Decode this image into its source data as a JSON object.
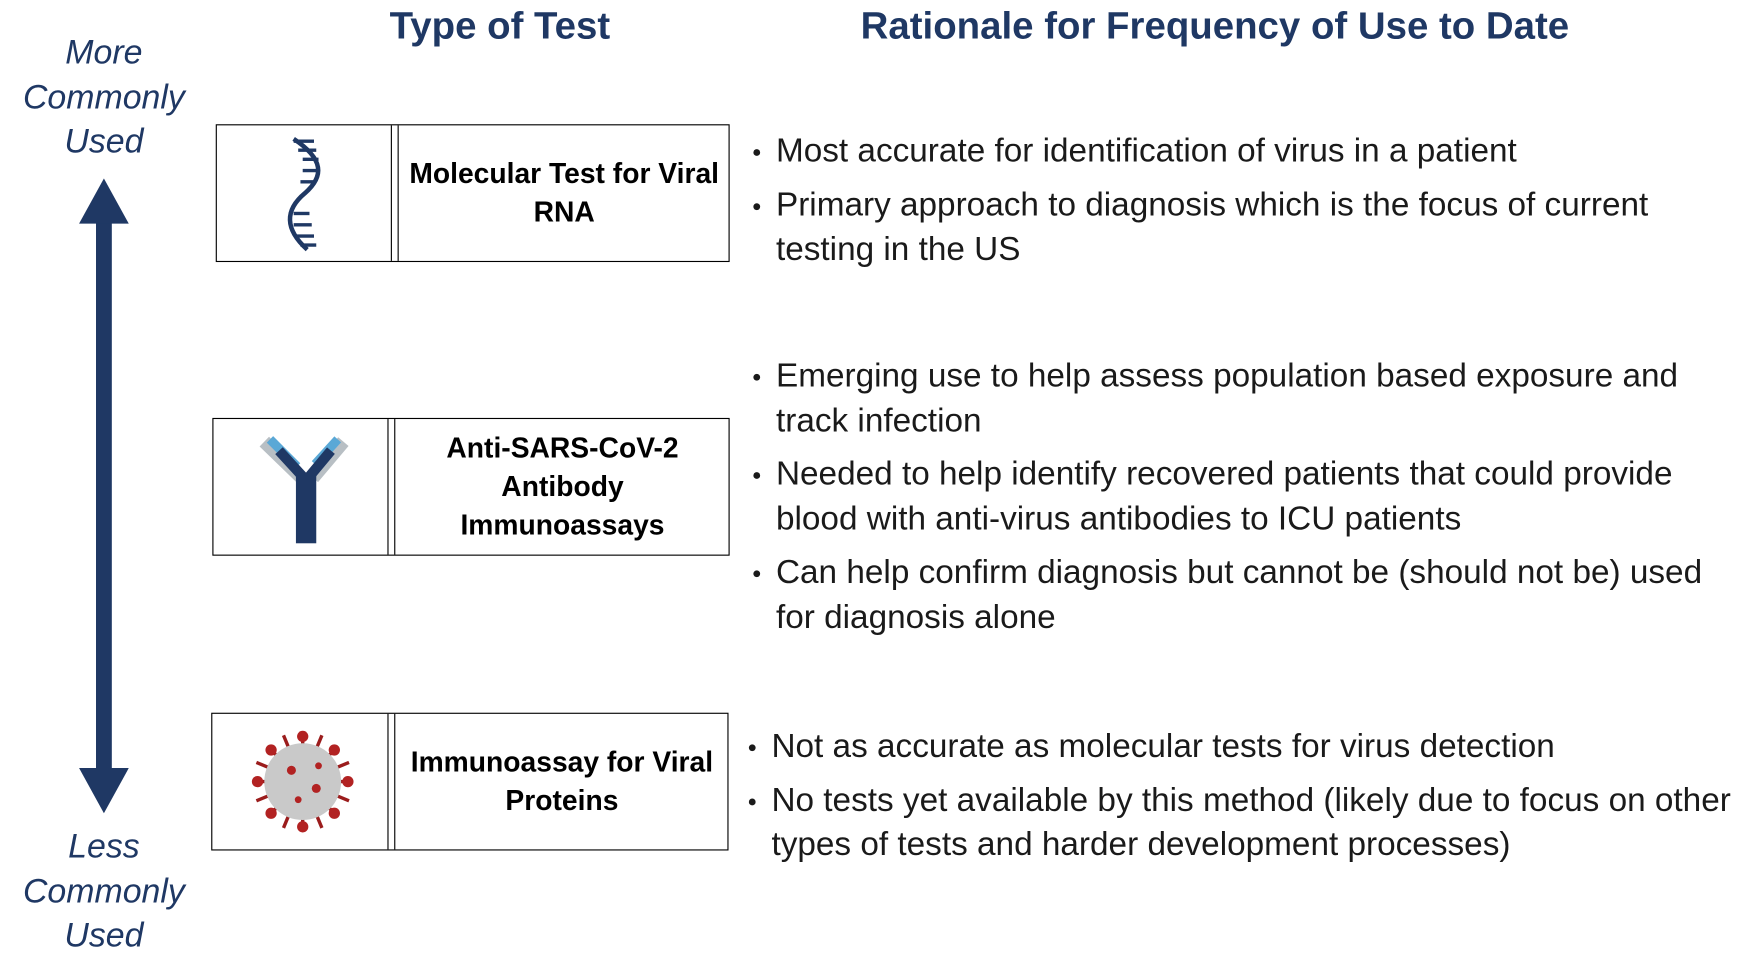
{
  "axis": {
    "top": "More Commonly Used",
    "bottom": "Less Commonly Used"
  },
  "headers": {
    "test": "Type of Test",
    "rationale": "Rationale for Frequency of Use to Date"
  },
  "rows": [
    {
      "test": "Molecular Test for Viral RNA",
      "bullets": [
        "Most accurate for identification of virus in a patient",
        "Primary approach to diagnosis which is the  focus of current testing in the US"
      ]
    },
    {
      "test": "Anti-SARS-CoV-2 Antibody Immunoassays",
      "bullets": [
        "Emerging use to help assess population based exposure and track infection",
        "Needed to help identify recovered patients that could provide blood with anti-virus antibodies to ICU patients",
        "Can help confirm diagnosis but cannot be (should not be) used for diagnosis alone"
      ]
    },
    {
      "test": "Immunoassay for Viral Proteins",
      "bullets": [
        "Not as accurate as molecular tests for virus detection",
        "No tests yet available by this method (likely due to focus on other types of tests and harder development processes)"
      ]
    }
  ]
}
